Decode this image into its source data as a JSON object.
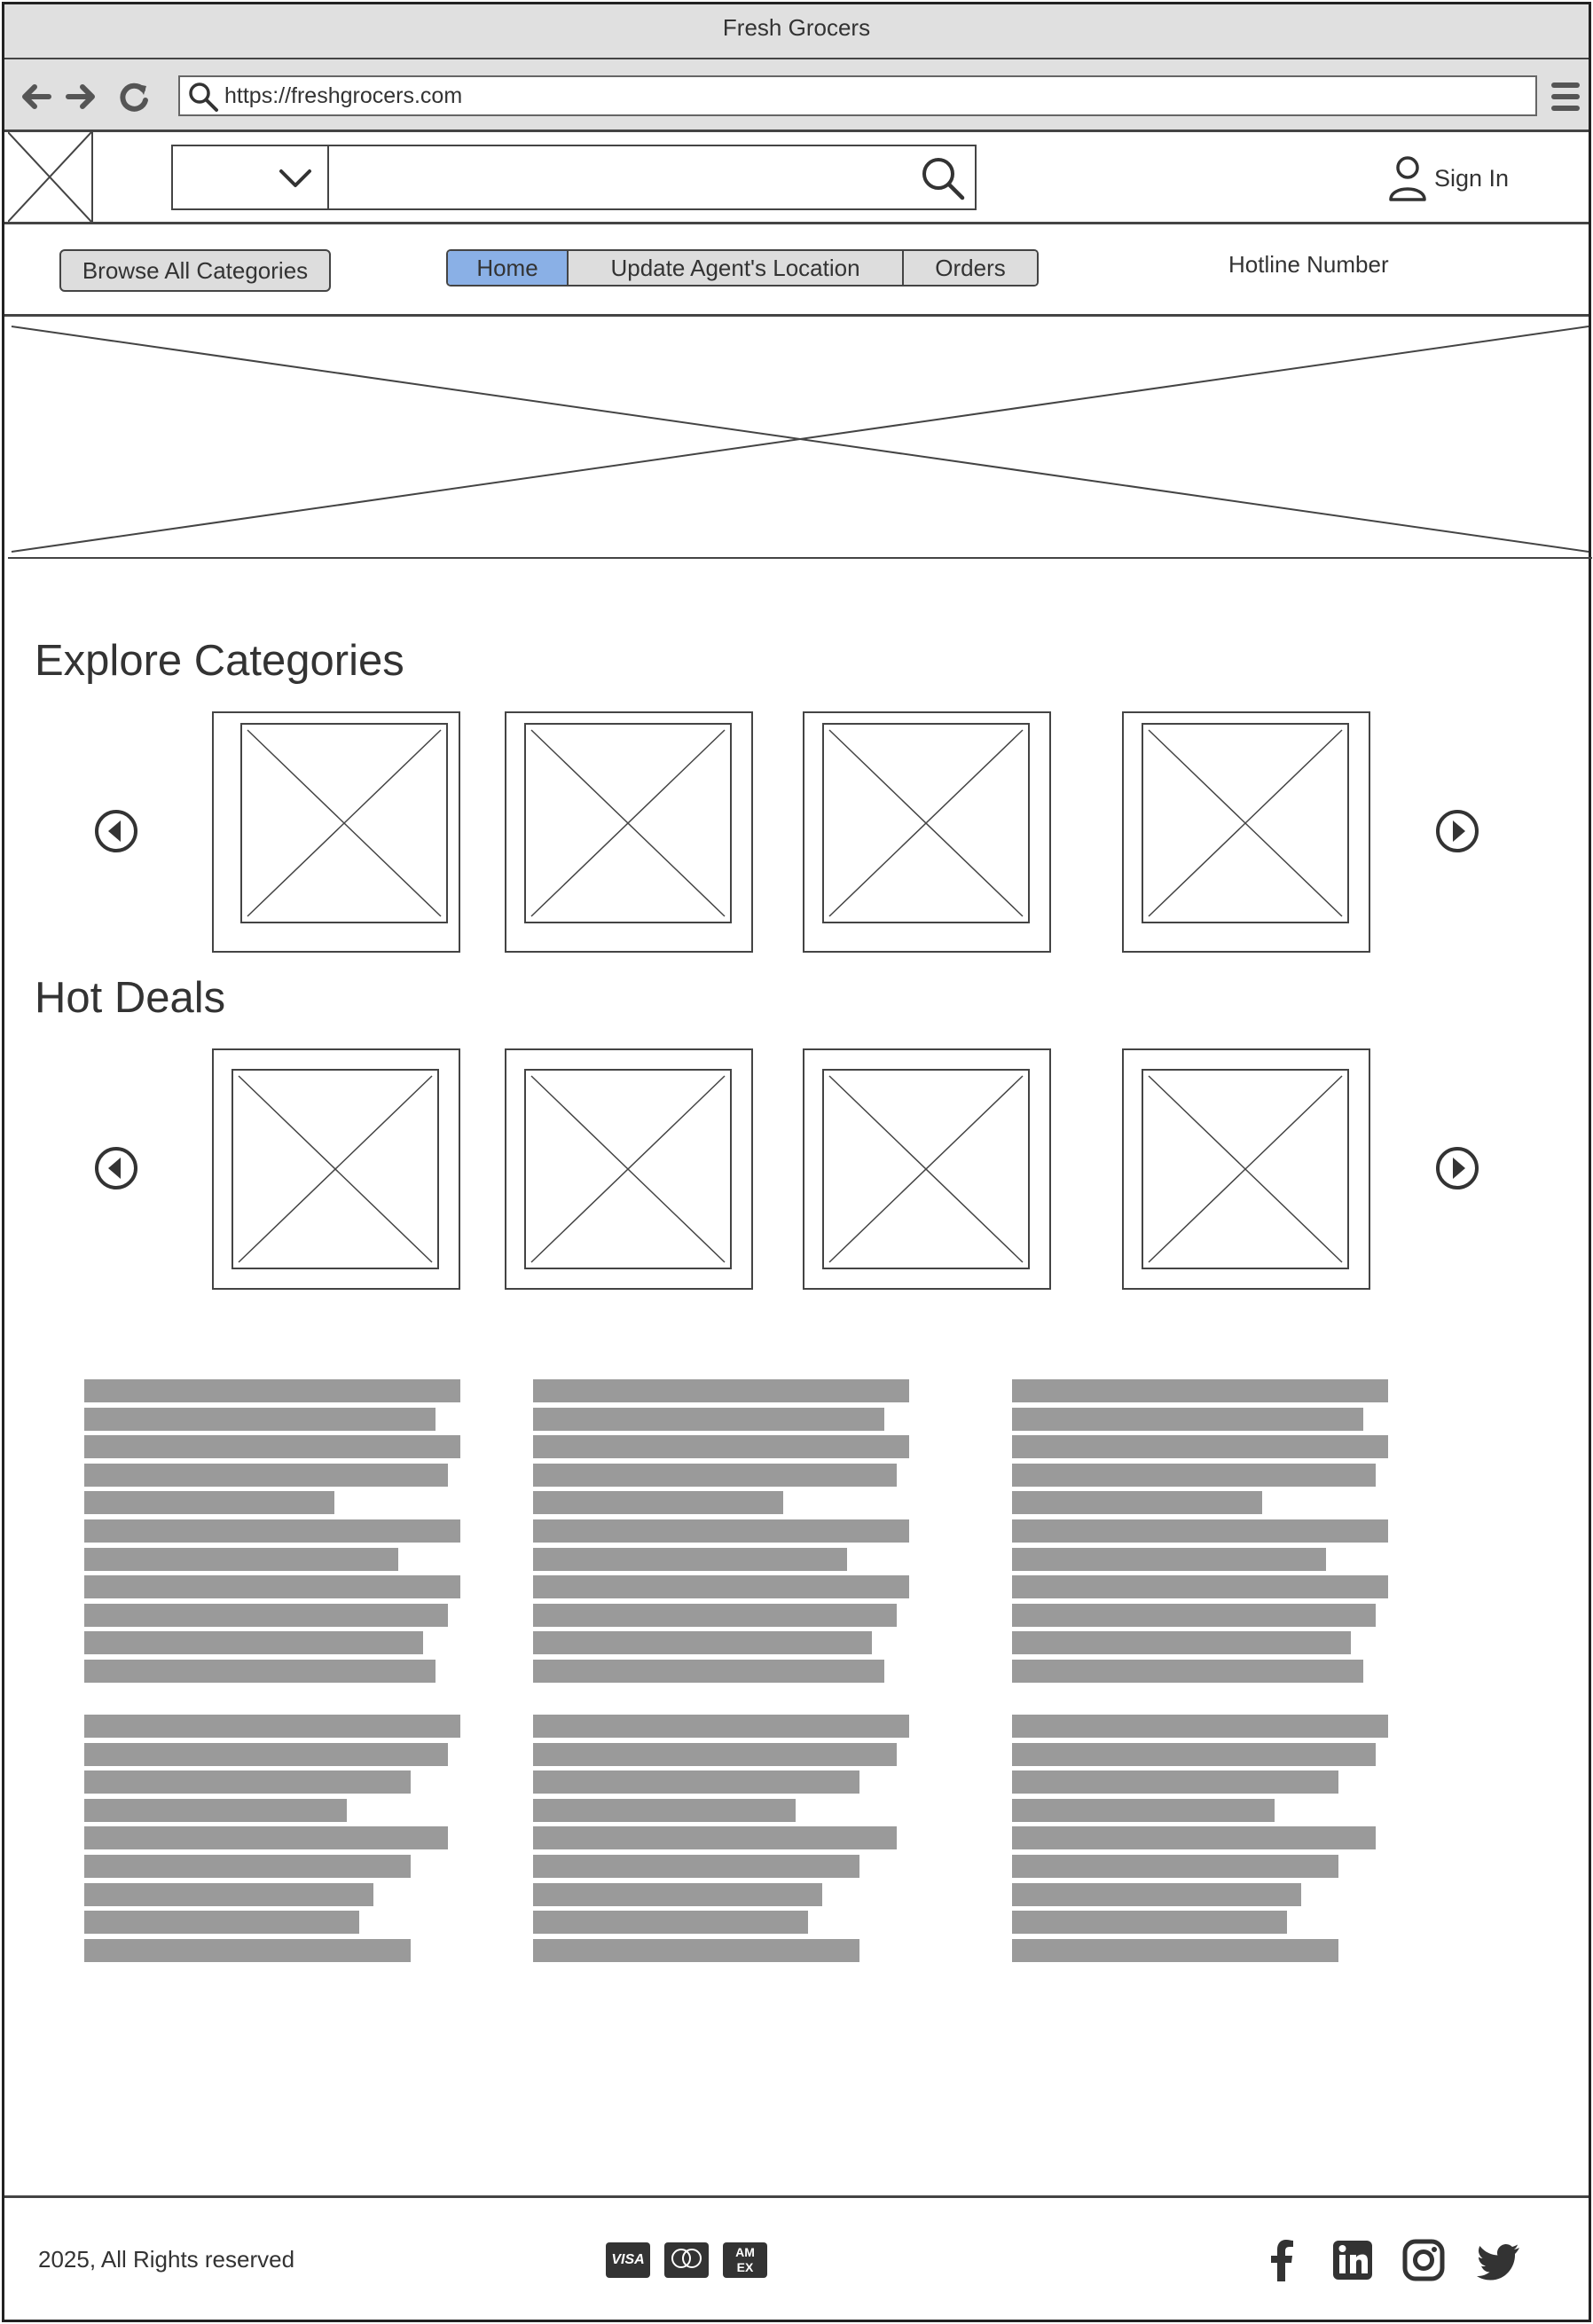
{
  "window": {
    "title": "Fresh Grocers"
  },
  "browser": {
    "url": "https://freshgrocers.com",
    "icons": [
      "back-arrow-icon",
      "forward-arrow-icon",
      "reload-icon",
      "search-icon",
      "hamburger-menu-icon"
    ]
  },
  "header": {
    "search_placeholder": "",
    "sign_in_label": "Sign In"
  },
  "nav": {
    "browse_label": "Browse All Categories",
    "tabs": [
      {
        "label": "Home",
        "active": true
      },
      {
        "label": "Update Agent's Location",
        "active": false
      },
      {
        "label": "Orders",
        "active": false
      }
    ],
    "hotline_label": "Hotline Number"
  },
  "sections": {
    "categories_title": "Explore Categories",
    "deals_title": "Hot Deals"
  },
  "footer": {
    "copyright": "2025, All Rights reserved",
    "payment_icons": [
      "visa-icon",
      "mastercard-icon",
      "amex-icon"
    ],
    "social_icons": [
      "facebook-icon",
      "linkedin-icon",
      "instagram-icon",
      "twitter-icon"
    ]
  },
  "colors": {
    "active_tab": "#8ab0e6",
    "chrome": "#e0e0e0",
    "placeholder_text_bar": "#9a9a9a"
  }
}
